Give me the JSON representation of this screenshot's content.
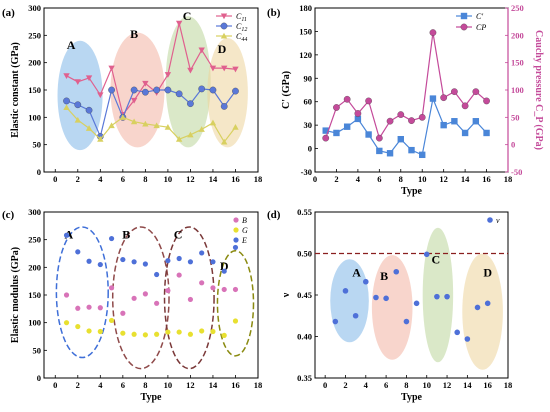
{
  "chart_data": [
    {
      "panel": "(a)",
      "type": "line",
      "xlabel": "",
      "ylabel": "Elastic constant (GPa)",
      "xlim": [
        -1,
        18
      ],
      "ylim": [
        0,
        300
      ],
      "xticks": [
        0,
        2,
        4,
        6,
        8,
        10,
        12,
        14,
        16,
        18
      ],
      "yticks": [
        0,
        50,
        100,
        150,
        200,
        250,
        300
      ],
      "x": [
        1,
        2,
        3,
        4,
        5,
        6,
        7,
        8,
        9,
        10,
        11,
        12,
        13,
        14,
        15,
        16
      ],
      "series": [
        {
          "name": "C11",
          "sub": "11",
          "color": "#e0608e",
          "marker": "triangle-down",
          "values": [
            176,
            165,
            172,
            141,
            190,
            105,
            131,
            162,
            145,
            178,
            272,
            186,
            223,
            190,
            190,
            188
          ]
        },
        {
          "name": "C12",
          "sub": "12",
          "color": "#5a78d8",
          "marker": "circle",
          "values": [
            130,
            123,
            113,
            65,
            150,
            100,
            150,
            146,
            150,
            150,
            143,
            125,
            152,
            150,
            120,
            148
          ]
        },
        {
          "name": "C44",
          "sub": "44",
          "color": "#d8d060",
          "marker": "triangle-up",
          "values": [
            118,
            95,
            80,
            60,
            85,
            100,
            92,
            88,
            85,
            82,
            60,
            68,
            78,
            90,
            55,
            82
          ]
        }
      ],
      "regions": [
        {
          "label": "A",
          "color": "#7fb6e8"
        },
        {
          "label": "B",
          "color": "#f2b2a2"
        },
        {
          "label": "C",
          "color": "#bcd69a"
        },
        {
          "label": "D",
          "color": "#ecd49a"
        }
      ]
    },
    {
      "panel": "(b)",
      "type": "line",
      "xlabel": "Type",
      "ylabel": "C' (GPa)",
      "y2label": "Cauchy pressure C_P (GPa)",
      "xlim": [
        0,
        18
      ],
      "ylim": [
        -30,
        180
      ],
      "y2lim": [
        -50,
        250
      ],
      "xticks": [
        0,
        2,
        4,
        6,
        8,
        10,
        12,
        14,
        16,
        18
      ],
      "yticks": [
        -30,
        0,
        30,
        60,
        90,
        120,
        150,
        180
      ],
      "y2ticks": [
        -50,
        0,
        50,
        100,
        150,
        200,
        250
      ],
      "x": [
        1,
        2,
        3,
        4,
        5,
        6,
        7,
        8,
        9,
        10,
        11,
        12,
        13,
        14,
        15,
        16
      ],
      "series": [
        {
          "name": "C'",
          "axis": "left",
          "color": "#4a86d8",
          "marker": "square",
          "values": [
            23,
            20,
            28,
            38,
            18,
            -3,
            -6,
            12,
            -2,
            -8,
            64,
            30,
            35,
            20,
            35,
            20
          ]
        },
        {
          "name": "CP",
          "axis": "right",
          "color": "#c44a9a",
          "marker": "circle",
          "values": [
            12,
            68,
            83,
            57,
            80,
            12,
            43,
            55,
            44,
            50,
            205,
            86,
            97,
            71,
            97,
            80
          ]
        }
      ]
    },
    {
      "panel": "(c)",
      "type": "scatter",
      "xlabel": "Type",
      "ylabel": "Elastic modulus (GPa)",
      "xlim": [
        -1,
        18
      ],
      "ylim": [
        0,
        300
      ],
      "xticks": [
        0,
        2,
        4,
        6,
        8,
        10,
        12,
        14,
        16,
        18
      ],
      "yticks": [
        0,
        50,
        100,
        150,
        200,
        250,
        300
      ],
      "x": [
        1,
        2,
        3,
        4,
        5,
        6,
        7,
        8,
        9,
        10,
        11,
        12,
        13,
        14,
        15,
        16
      ],
      "series": [
        {
          "name": "B",
          "color": "#d873b8",
          "values": [
            150,
            126,
            128,
            127,
            163,
            117,
            144,
            152,
            135,
            158,
            186,
            142,
            172,
            163,
            160,
            160
          ]
        },
        {
          "name": "G",
          "color": "#e8e030",
          "values": [
            100,
            93,
            85,
            84,
            104,
            81,
            79,
            78,
            79,
            83,
            83,
            79,
            85,
            84,
            77,
            103
          ]
        },
        {
          "name": "E",
          "color": "#4e70d8",
          "values": [
            258,
            228,
            211,
            205,
            252,
            214,
            210,
            206,
            187,
            212,
            216,
            210,
            226,
            210,
            193,
            236
          ]
        }
      ],
      "regions": [
        {
          "label": "A",
          "color": "#3f6fd8"
        },
        {
          "label": "B",
          "color": "#8f4a4a"
        },
        {
          "label": "C",
          "color": "#7a3838"
        },
        {
          "label": "D",
          "color": "#8a8a10"
        }
      ]
    },
    {
      "panel": "(d)",
      "type": "scatter",
      "xlabel": "Type",
      "ylabel": "ν",
      "xlim": [
        -1,
        18
      ],
      "ylim": [
        0.35,
        0.55
      ],
      "xticks": [
        0,
        2,
        4,
        6,
        8,
        10,
        12,
        14,
        16,
        18
      ],
      "yticks": [
        0.35,
        0.4,
        0.45,
        0.5,
        0.55
      ],
      "reference_line": 0.5,
      "x": [
        1,
        2,
        3,
        4,
        5,
        6,
        7,
        8,
        9,
        10,
        11,
        12,
        13,
        14,
        15,
        16
      ],
      "series": [
        {
          "name": "ν",
          "color": "#4e70d8",
          "values": [
            0.418,
            0.455,
            0.425,
            0.466,
            0.447,
            0.446,
            0.478,
            0.418,
            0.44,
            0.499,
            0.448,
            0.448,
            0.405,
            0.397,
            0.435,
            0.44
          ]
        }
      ],
      "regions": [
        {
          "label": "A",
          "color": "#7fb6e8"
        },
        {
          "label": "B",
          "color": "#f2b2a2"
        },
        {
          "label": "C",
          "color": "#bcd69a"
        },
        {
          "label": "D",
          "color": "#ecd49a"
        }
      ]
    }
  ]
}
